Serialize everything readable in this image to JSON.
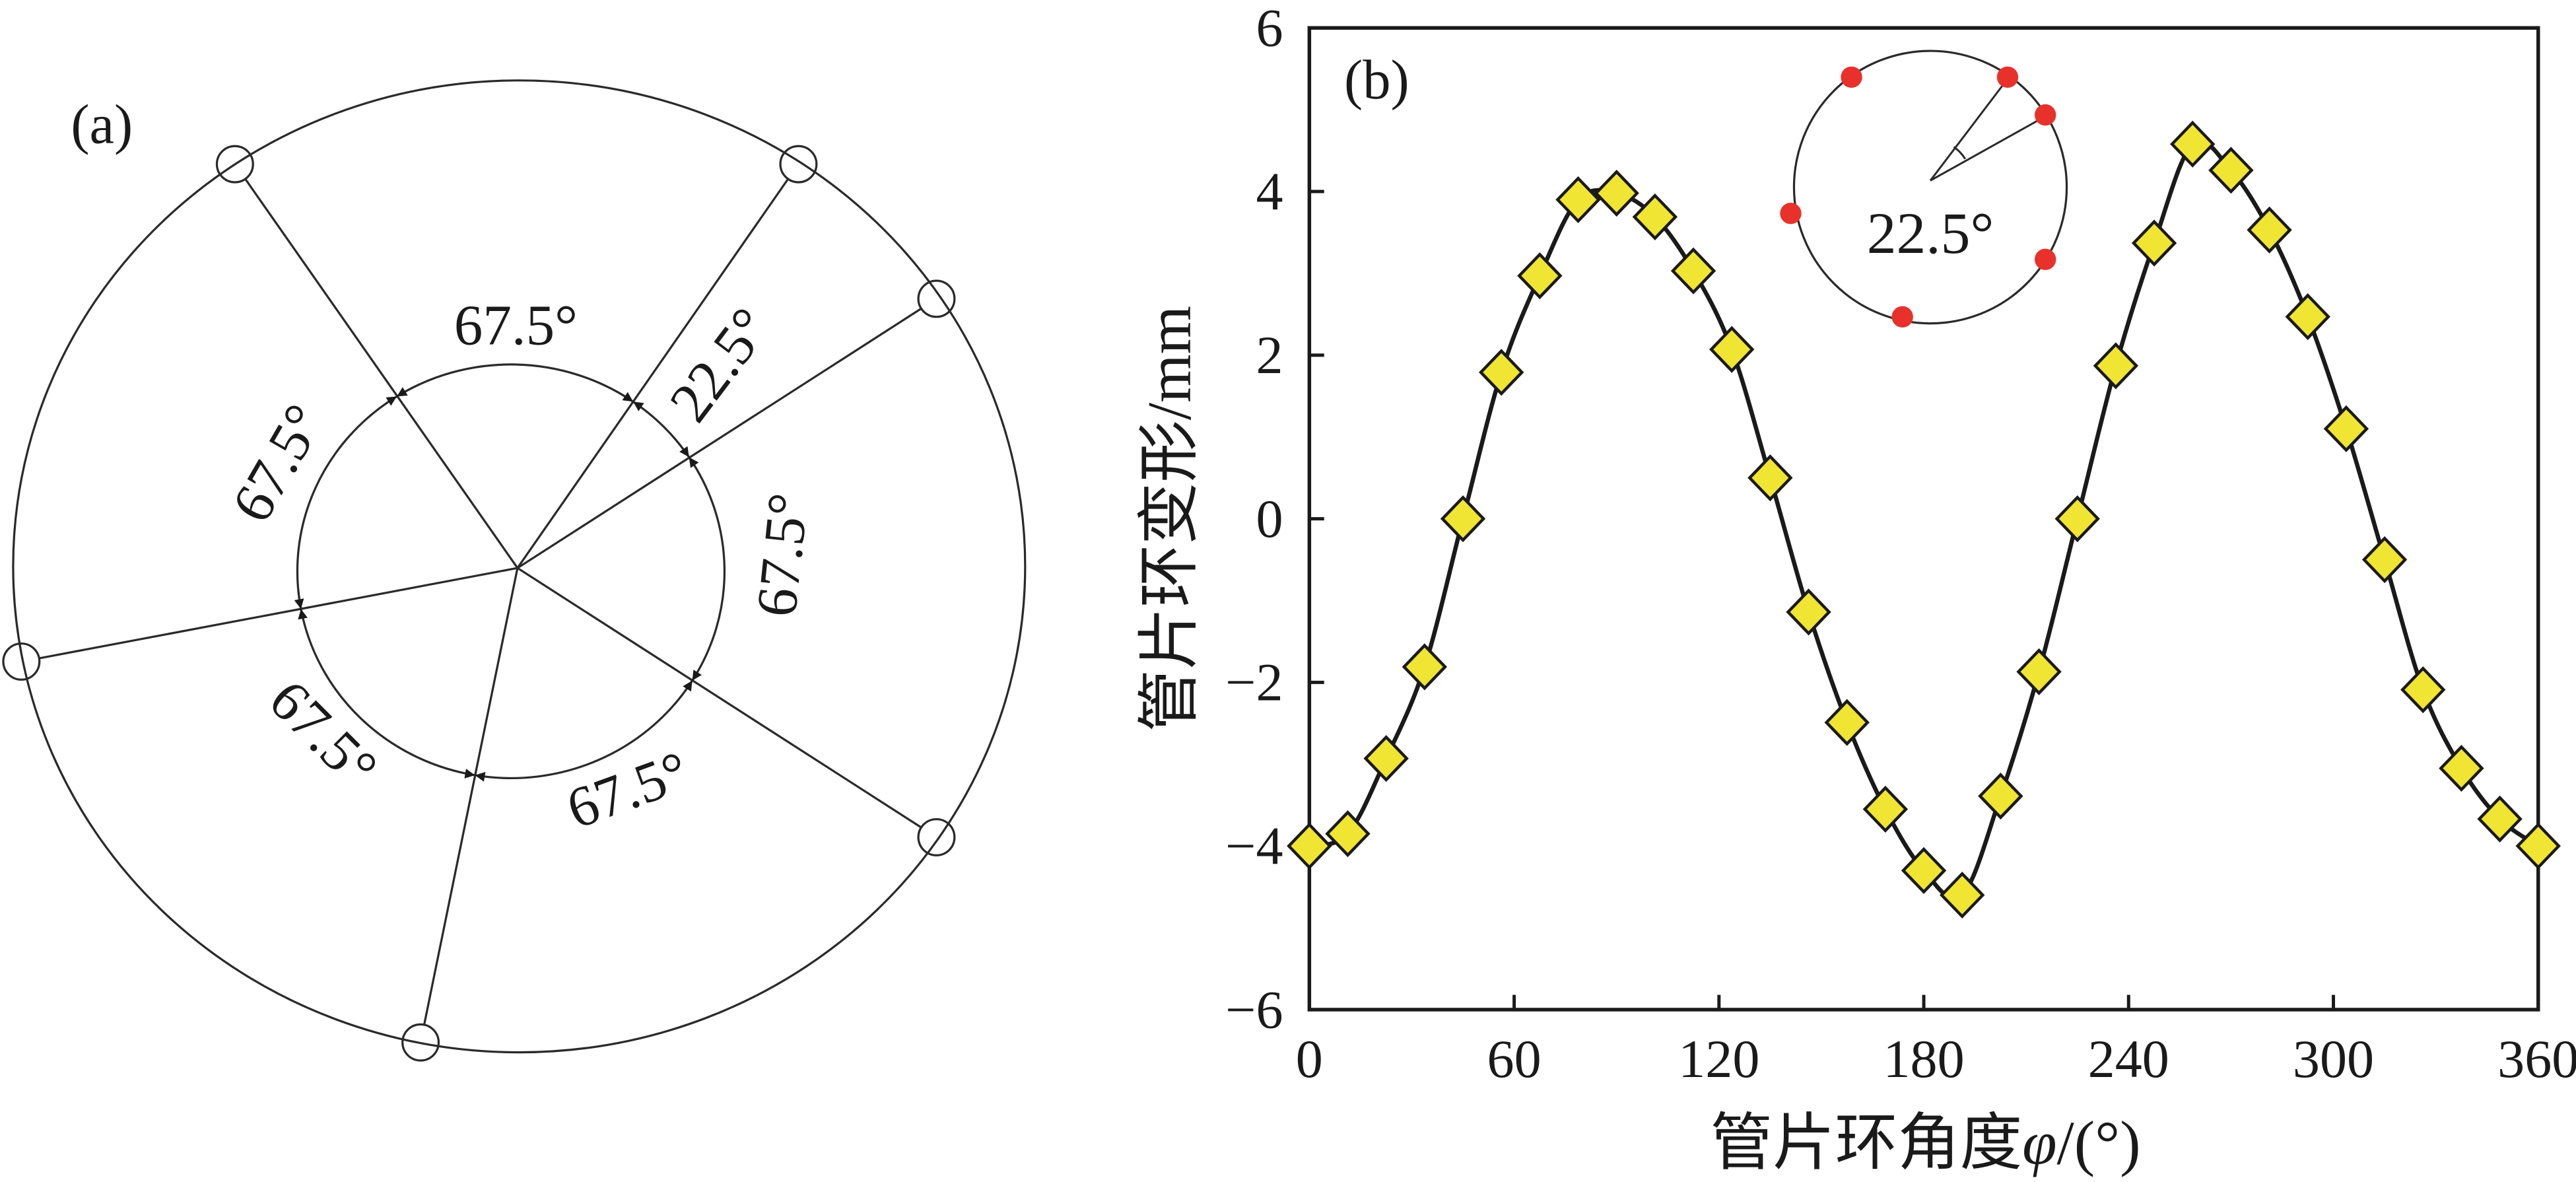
{
  "figure": {
    "panel_a": {
      "label": "(a)",
      "angle_labels": [
        "67.5°",
        "22.5°",
        "67.5°",
        "67.5°",
        "67.5°",
        "67.5°"
      ]
    },
    "panel_b": {
      "label": "(b)",
      "inset_angle_label": "22.5°"
    }
  },
  "colors": {
    "line": "#1a1a1a",
    "marker_fill": "#f0e532",
    "marker_edge": "#1a1a1a",
    "inset_dot": "#e8312b"
  },
  "chart_data": {
    "type": "line",
    "title": "",
    "xlabel_main": "管片环角度",
    "xlabel_var": "φ",
    "xlabel_unit": "/(°)",
    "ylabel": "管片环变形/mm",
    "xlim": [
      0,
      360
    ],
    "ylim": [
      -6,
      6
    ],
    "xticks": [
      0,
      60,
      120,
      180,
      240,
      300,
      360
    ],
    "xtick_labels": [
      "0",
      "60",
      "120",
      "180",
      "240",
      "300",
      "360"
    ],
    "yticks": [
      6,
      4,
      2,
      0,
      -2,
      -4,
      -6
    ],
    "ytick_labels": [
      "6",
      "4",
      "2",
      "0",
      "−2",
      "−4",
      "−6"
    ],
    "grid": false,
    "series": [
      {
        "x": [
          0,
          11.25,
          22.5,
          33.75,
          45,
          56.25,
          67.5,
          78.75,
          90,
          101.25,
          112.5,
          123.75,
          135,
          146.25,
          157.5,
          168.75,
          180,
          191.25,
          202.5,
          213.75,
          225,
          236.25,
          247.5,
          258.75,
          270,
          281.25,
          292.5,
          303.75,
          315,
          326.25,
          337.5,
          348.75,
          360
        ],
        "y": [
          -4.0,
          -3.85,
          -2.93,
          -1.81,
          0.0,
          1.79,
          2.97,
          3.9,
          3.98,
          3.69,
          3.03,
          2.07,
          0.5,
          -1.14,
          -2.49,
          -3.55,
          -4.3,
          -4.6,
          -3.39,
          -1.87,
          0.0,
          1.87,
          3.37,
          4.58,
          4.26,
          3.53,
          2.47,
          1.1,
          -0.5,
          -2.09,
          -3.05,
          -3.67,
          -4.0
        ]
      }
    ]
  }
}
